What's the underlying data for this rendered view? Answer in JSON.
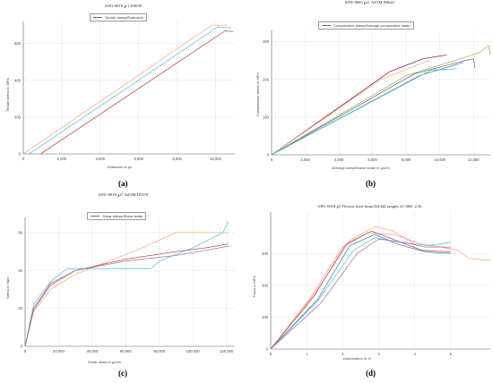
{
  "chart_data": [
    {
      "id": "a",
      "type": "line",
      "panel_label": "(a)",
      "title": "6391-0018 gr1 D3039",
      "legend": "Tensile stress/Extension",
      "xlabel": "Extension in με",
      "ylabel": "Tensile stress in MPa",
      "xlim": [
        0,
        11000
      ],
      "ylim": [
        0,
        720
      ],
      "xticks": [
        0,
        2000,
        4000,
        6000,
        8000,
        10000
      ],
      "xtick_labels": [
        "0",
        "2,000",
        "4,000",
        "6,000",
        "8,000",
        "10,000"
      ],
      "yticks": [
        0,
        200,
        400,
        600
      ],
      "ytick_labels": [
        "0",
        "200",
        "400",
        "600"
      ],
      "grid": true,
      "legend_position": "top-center",
      "series": [
        {
          "color": "#f4b183",
          "x": [
            0,
            9800,
            10600
          ],
          "y": [
            0,
            700,
            700
          ]
        },
        {
          "color": "#5bc8e8",
          "x": [
            300,
            10100,
            10800
          ],
          "y": [
            0,
            690,
            685
          ]
        },
        {
          "color": "#c0504d",
          "x": [
            900,
            10500,
            10900
          ],
          "y": [
            0,
            670,
            665
          ]
        }
      ]
    },
    {
      "id": "b",
      "type": "line",
      "panel_label": "(b)",
      "title": "6391-0065 g21 ASTM D6641",
      "legend": "Compressive stress/Average compressive strain",
      "xlabel": "Average compressive strain in µm/m",
      "ylabel": "Compressive stress in MPa",
      "xlim": [
        0,
        13000
      ],
      "ylim": [
        0,
        330
      ],
      "xticks": [
        0,
        2000,
        4000,
        6000,
        8000,
        10000,
        12000
      ],
      "xtick_labels": [
        "0",
        "2,000",
        "4,000",
        "6,000",
        "8,000",
        "10,000",
        "12,000"
      ],
      "yticks": [
        0,
        100,
        200,
        300
      ],
      "ytick_labels": [
        "0",
        "100",
        "200",
        "300"
      ],
      "grid": true,
      "legend_position": "top-center",
      "series": [
        {
          "color": "#8b2252",
          "x": [
            0,
            7000,
            9000,
            10400
          ],
          "y": [
            0,
            220,
            255,
            265
          ]
        },
        {
          "color": "#f4b183",
          "x": [
            0,
            6500,
            9300,
            9400
          ],
          "y": [
            0,
            200,
            250,
            245
          ]
        },
        {
          "color": "#9bbb59",
          "x": [
            0,
            8000,
            12300,
            12900,
            13000
          ],
          "y": [
            0,
            210,
            270,
            290,
            265
          ]
        },
        {
          "color": "#8064a2",
          "x": [
            0,
            8500,
            11500,
            12000,
            12100
          ],
          "y": [
            0,
            215,
            250,
            255,
            230
          ]
        },
        {
          "color": "#4f81bd",
          "x": [
            0,
            8800,
            11000,
            11400
          ],
          "y": [
            0,
            210,
            240,
            245
          ]
        },
        {
          "color": "#4bc6b0",
          "x": [
            0,
            9500,
            11000
          ],
          "y": [
            0,
            225,
            228
          ]
        }
      ]
    },
    {
      "id": "c",
      "type": "line",
      "panel_label": "(c)",
      "title": "6391-0018 g27 ASTM D5379",
      "legend": "Shear stress/Shear strain",
      "xlabel": "Shear strain in µm/m",
      "ylabel": "Stress in Mpa",
      "xlim": [
        0,
        125000
      ],
      "ylim": [
        0,
        68
      ],
      "xticks": [
        0,
        20000,
        40000,
        60000,
        80000,
        100000,
        120000
      ],
      "xtick_labels": [
        "0",
        "20,000",
        "40,000",
        "60,000",
        "80,000",
        "100,000",
        "120,000"
      ],
      "yticks": [
        0,
        20,
        40,
        60
      ],
      "ytick_labels": [
        "0",
        "20",
        "40",
        "60"
      ],
      "grid": true,
      "legend_position": "top-left",
      "series": [
        {
          "color": "#f4b183",
          "x": [
            0,
            5000,
            15000,
            30000,
            50000,
            70000,
            90000,
            122000
          ],
          "y": [
            0,
            18,
            30,
            38,
            45,
            52,
            60,
            60
          ]
        },
        {
          "color": "#5bc8e8",
          "x": [
            0,
            5000,
            15000,
            25000,
            75000,
            80000,
            100000,
            118000,
            121000
          ],
          "y": [
            0,
            22,
            34,
            41,
            41,
            45,
            52,
            60,
            66
          ]
        },
        {
          "color": "#c0504d",
          "x": [
            0,
            5000,
            15000,
            30000,
            60000,
            90000,
            108000,
            121000
          ],
          "y": [
            0,
            20,
            33,
            40,
            46,
            50,
            52,
            54
          ]
        },
        {
          "color": "#9b7fb8",
          "x": [
            0,
            5000,
            15000,
            30000,
            60000,
            90000,
            110000,
            122000
          ],
          "y": [
            0,
            19,
            32,
            40,
            45,
            48,
            51,
            53
          ]
        }
      ]
    },
    {
      "id": "d",
      "type": "line",
      "panel_label": "(d)",
      "title": "6391-0018 g5 Flexion short beam D2344 sample 41 500C 2.5h",
      "legend": "",
      "xlabel": "Deformation in %",
      "ylabel": "Force in MPa",
      "xlim": [
        0,
        6.1
      ],
      "ylim": [
        0,
        430
      ],
      "xticks": [
        0,
        1,
        2,
        3,
        4,
        5
      ],
      "xtick_labels": [
        "0",
        "1",
        "2",
        "3",
        "4",
        "5"
      ],
      "yticks": [
        0,
        100,
        200,
        300
      ],
      "ytick_labels": [
        "0",
        "100",
        "200",
        "300"
      ],
      "grid": true,
      "series": [
        {
          "color": "#f4b183",
          "x": [
            0,
            1.2,
            2.2,
            2.9,
            3.4,
            4.0,
            4.7,
            5.2,
            5.5,
            5.9,
            6.1
          ],
          "y": [
            0,
            170,
            340,
            385,
            370,
            330,
            320,
            310,
            285,
            280,
            280
          ]
        },
        {
          "color": "#ff9c9c",
          "x": [
            0,
            1.1,
            2.0,
            2.7,
            3.4,
            4.2,
            5.0
          ],
          "y": [
            0,
            160,
            320,
            365,
            360,
            330,
            315
          ]
        },
        {
          "color": "#c0504d",
          "x": [
            0,
            1.2,
            2.1,
            2.8,
            3.5,
            4.2,
            5.0
          ],
          "y": [
            0,
            165,
            330,
            370,
            340,
            310,
            305
          ]
        },
        {
          "color": "#5bc8e8",
          "x": [
            0,
            1.3,
            2.3,
            2.9,
            3.6,
            4.4,
            5.0
          ],
          "y": [
            0,
            150,
            310,
            350,
            335,
            325,
            335
          ]
        },
        {
          "color": "#4f81bd",
          "x": [
            0,
            1.3,
            2.2,
            2.9,
            3.5,
            4.3,
            5.0
          ],
          "y": [
            0,
            155,
            325,
            360,
            330,
            305,
            300
          ]
        },
        {
          "color": "#9b7fb8",
          "x": [
            0,
            1.4,
            2.4,
            3.0,
            3.7,
            4.3,
            5.0
          ],
          "y": [
            0,
            145,
            300,
            345,
            335,
            320,
            320
          ]
        }
      ]
    }
  ]
}
